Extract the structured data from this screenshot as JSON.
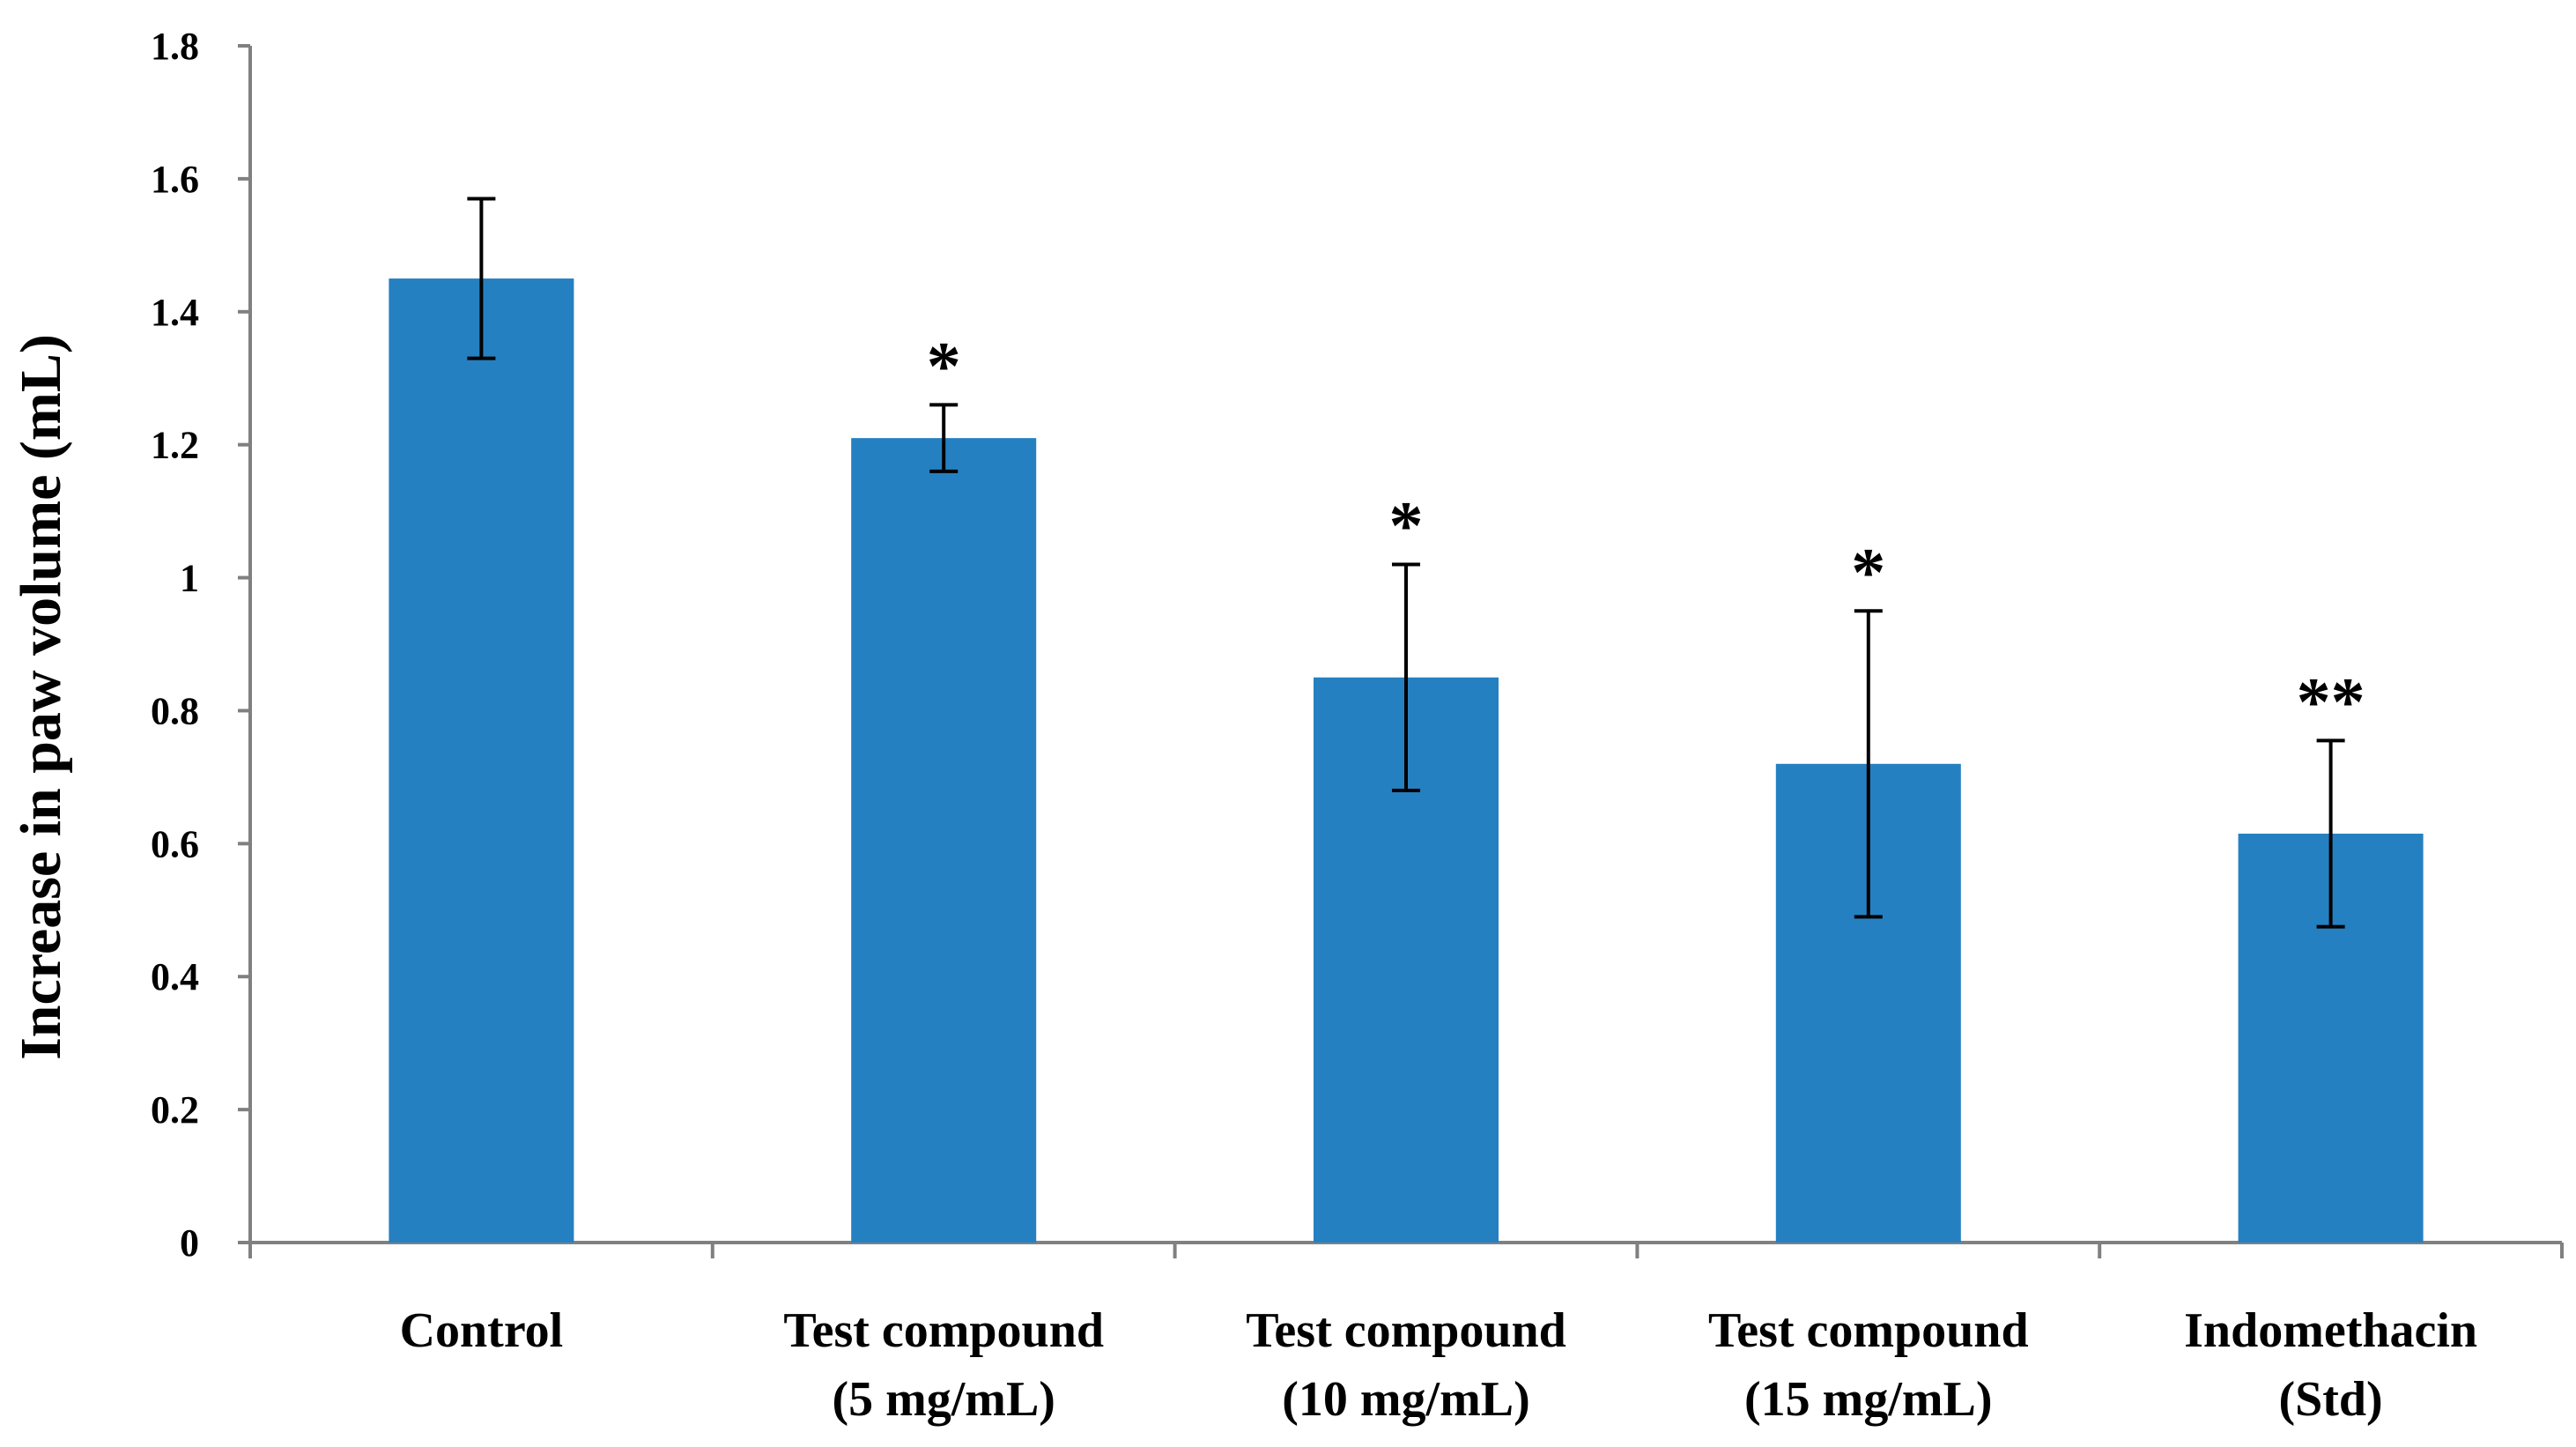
{
  "chart_data": {
    "type": "bar",
    "title": "",
    "xlabel": "",
    "ylabel": "Increase in paw volume (mL)",
    "ylim": [
      0,
      1.8
    ],
    "yticks": [
      "0",
      "0.2",
      "0.4",
      "0.6",
      "0.8",
      "1",
      "1.2",
      "1.4",
      "1.6",
      "1.8"
    ],
    "grid": false,
    "legend": "none",
    "bar_color": "#2580c1",
    "categories": [
      [
        "Control"
      ],
      [
        "Test compound",
        "(5 mg/mL)"
      ],
      [
        "Test compound",
        "(10 mg/mL)"
      ],
      [
        "Test compound",
        "(15 mg/mL)"
      ],
      [
        "Indomethacin",
        "(Std)"
      ]
    ],
    "values": [
      1.45,
      1.21,
      0.85,
      0.72,
      0.615
    ],
    "errors": [
      0.12,
      0.05,
      0.17,
      0.23,
      0.14
    ],
    "significance": [
      "",
      "*",
      "*",
      "*",
      "**"
    ]
  }
}
